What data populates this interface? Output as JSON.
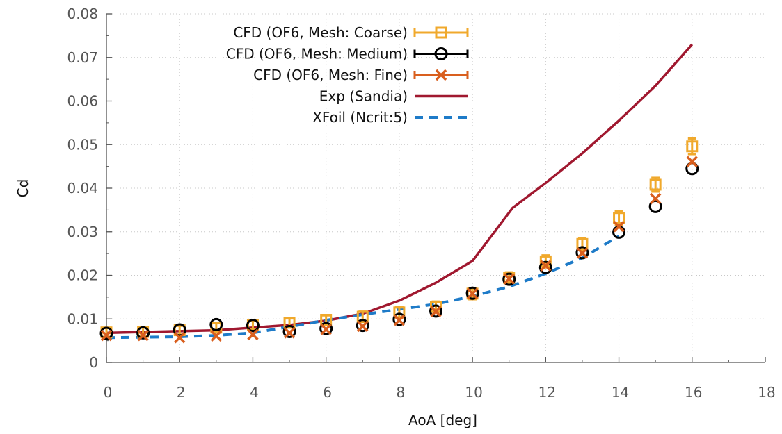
{
  "chart_data": {
    "type": "line",
    "title": "",
    "xlabel": "AoA [deg]",
    "ylabel": "Cd",
    "xlim": [
      0,
      18
    ],
    "ylim": [
      0,
      0.08
    ],
    "x_ticks": [
      0,
      2,
      4,
      6,
      8,
      10,
      12,
      14,
      16,
      18
    ],
    "x_tick_labels": [
      "0",
      "2",
      "4",
      "6",
      "8",
      "10",
      "12",
      "14",
      "16",
      "18"
    ],
    "y_ticks": [
      0,
      0.01,
      0.02,
      0.03,
      0.04,
      0.05,
      0.06,
      0.07,
      0.08
    ],
    "y_tick_labels": [
      "0",
      "0.01",
      "0.02",
      "0.03",
      "0.04",
      "0.05",
      "0.06",
      "0.07",
      "0.08"
    ],
    "grid": true,
    "legend_position": "top-left",
    "series": [
      {
        "name": "CFD (OF6, Mesh: Coarse)",
        "style": "line-errorbar",
        "marker": "square",
        "color": "#F0A92C",
        "x": [
          0,
          1,
          2,
          3,
          4,
          5,
          6,
          7,
          8,
          9,
          10,
          11,
          12,
          13,
          14,
          15,
          16
        ],
        "y": [
          0.0069,
          0.007,
          0.0074,
          0.008,
          0.0086,
          0.0091,
          0.0098,
          0.0105,
          0.0115,
          0.0128,
          0.0158,
          0.0194,
          0.0232,
          0.0272,
          0.0332,
          0.0408,
          0.0496
        ],
        "err": [
          0.001,
          0.001,
          0.001,
          0.001,
          0.001,
          0.001,
          0.001,
          0.0012,
          0.0012,
          0.0012,
          0.0013,
          0.0013,
          0.0014,
          0.0014,
          0.0016,
          0.0016,
          0.0018
        ]
      },
      {
        "name": "CFD (OF6, Mesh: Medium)",
        "style": "markers",
        "marker": "circle",
        "color": "#000000",
        "x": [
          0,
          1,
          2,
          3,
          4,
          5,
          6,
          7,
          8,
          9,
          10,
          11,
          12,
          13,
          14,
          15,
          16
        ],
        "y": [
          0.0067,
          0.0068,
          0.0075,
          0.0087,
          0.0085,
          0.0071,
          0.0078,
          0.0085,
          0.0099,
          0.0118,
          0.0159,
          0.0191,
          0.0218,
          0.0252,
          0.0299,
          0.0358,
          0.0445
        ]
      },
      {
        "name": "CFD (OF6, Mesh: Fine)",
        "style": "markers",
        "marker": "x",
        "color": "#D95F1E",
        "x": [
          0,
          1,
          2,
          3,
          4,
          5,
          6,
          7,
          8,
          9,
          10,
          11,
          12,
          13,
          14,
          15,
          16
        ],
        "y": [
          0.0062,
          0.0062,
          0.0057,
          0.0061,
          0.0064,
          0.0068,
          0.0076,
          0.0083,
          0.0097,
          0.0117,
          0.0158,
          0.0192,
          0.0222,
          0.0251,
          0.0312,
          0.0376,
          0.0461
        ]
      },
      {
        "name": "Exp (Sandia)",
        "style": "line",
        "color": "#A0182F",
        "x": [
          0,
          2,
          3,
          4,
          5,
          6,
          7,
          8,
          9,
          10,
          11.1,
          12,
          13,
          14,
          15,
          16
        ],
        "y": [
          0.0068,
          0.0072,
          0.0074,
          0.008,
          0.0086,
          0.0096,
          0.0112,
          0.0142,
          0.0183,
          0.0233,
          0.0355,
          0.0412,
          0.048,
          0.0555,
          0.0635,
          0.073
        ]
      },
      {
        "name": "XFoil (Ncrit:5)",
        "style": "dashed",
        "color": "#1E7BC8",
        "x": [
          0,
          1,
          2,
          3,
          4,
          5,
          6,
          7,
          8,
          9,
          10,
          11,
          12,
          13,
          14
        ],
        "y": [
          0.0057,
          0.0058,
          0.0059,
          0.0062,
          0.0068,
          0.0082,
          0.0097,
          0.011,
          0.0122,
          0.0134,
          0.0152,
          0.0174,
          0.0204,
          0.024,
          0.029
        ]
      }
    ]
  }
}
